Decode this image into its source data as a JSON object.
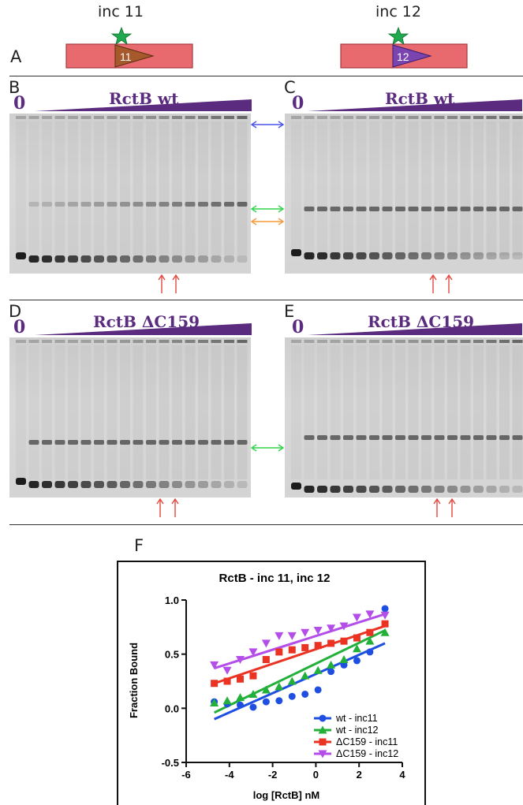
{
  "panels": {
    "a": {
      "letter": "A",
      "left_label": "inc 11",
      "right_label": "inc 12",
      "left_badge": "11",
      "right_badge": "12"
    },
    "b": {
      "letter": "B",
      "zero": "0",
      "title": "RctB wt"
    },
    "c": {
      "letter": "C",
      "zero": "0",
      "title": "RctB wt"
    },
    "d": {
      "letter": "D",
      "zero": "0",
      "title": "RctB ΔC159"
    },
    "e": {
      "letter": "E",
      "zero": "0",
      "title": "RctB ΔC159"
    },
    "f": {
      "letter": "F"
    }
  },
  "colors": {
    "purple": "#5a2b7e",
    "rect_fill": "#e86a6f",
    "star": "#1faa4f",
    "triangle_inc11": "#a65a2c",
    "triangle_inc12": "#7a45b0",
    "arrow_blue": "#4a55e8",
    "arrow_green": "#2fd64a",
    "arrow_orange": "#f59a3a",
    "arrow_red": "#e0483e"
  },
  "chart_data": {
    "type": "scatter",
    "title": "RctB - inc 11, inc 12",
    "xlabel": "log [RctB] nM",
    "ylabel": "Fraction Bound",
    "xlim": [
      -6,
      4
    ],
    "ylim": [
      -0.5,
      1.0
    ],
    "x_ticks": [
      "-6",
      "-4",
      "-2",
      "0",
      "2",
      "4"
    ],
    "y_ticks": [
      "-0.5",
      "0.0",
      "0.5",
      "1.0"
    ],
    "legend_position": "bottom-right",
    "series": [
      {
        "name": "wt - inc11",
        "color": "#1f4fe0",
        "marker": "circle",
        "x": [
          -4.7,
          -4.1,
          -3.5,
          -2.9,
          -2.3,
          -1.7,
          -1.1,
          -0.5,
          0.1,
          0.7,
          1.3,
          1.9,
          2.5,
          3.2
        ],
        "y": [
          0.06,
          0.04,
          0.03,
          0.01,
          0.06,
          0.07,
          0.11,
          0.13,
          0.17,
          0.34,
          0.4,
          0.44,
          0.52,
          0.92
        ],
        "fit": [
          [
            -4.7,
            -0.1
          ],
          [
            3.2,
            0.6
          ]
        ]
      },
      {
        "name": "wt - inc12",
        "color": "#22b03a",
        "marker": "triangle-up",
        "x": [
          -4.7,
          -4.1,
          -3.5,
          -2.9,
          -2.3,
          -1.7,
          -1.1,
          -0.5,
          0.1,
          0.7,
          1.3,
          1.9,
          2.5,
          3.2
        ],
        "y": [
          0.05,
          0.07,
          0.1,
          0.13,
          0.17,
          0.2,
          0.25,
          0.3,
          0.35,
          0.4,
          0.45,
          0.55,
          0.62,
          0.7
        ],
        "fit": [
          [
            -4.7,
            -0.04
          ],
          [
            3.2,
            0.72
          ]
        ]
      },
      {
        "name": "ΔC159 - inc11",
        "color": "#ea3323",
        "marker": "square",
        "x": [
          -4.7,
          -4.1,
          -3.5,
          -2.9,
          -2.3,
          -1.7,
          -1.1,
          -0.5,
          0.1,
          0.7,
          1.3,
          1.9,
          2.5,
          3.2
        ],
        "y": [
          0.23,
          0.25,
          0.27,
          0.3,
          0.45,
          0.52,
          0.54,
          0.56,
          0.58,
          0.6,
          0.62,
          0.65,
          0.7,
          0.78
        ],
        "fit": [
          [
            -4.7,
            0.23
          ],
          [
            3.2,
            0.76
          ]
        ]
      },
      {
        "name": "ΔC159 - inc12",
        "color": "#b44ee8",
        "marker": "triangle-down",
        "x": [
          -4.7,
          -4.1,
          -3.5,
          -2.9,
          -2.3,
          -1.7,
          -1.1,
          -0.5,
          0.1,
          0.7,
          1.3,
          1.9,
          2.5,
          3.2
        ],
        "y": [
          0.4,
          0.35,
          0.45,
          0.52,
          0.6,
          0.67,
          0.67,
          0.7,
          0.72,
          0.74,
          0.76,
          0.84,
          0.87,
          0.86
        ],
        "fit": [
          [
            -4.7,
            0.37
          ],
          [
            3.2,
            0.87
          ]
        ]
      }
    ]
  }
}
